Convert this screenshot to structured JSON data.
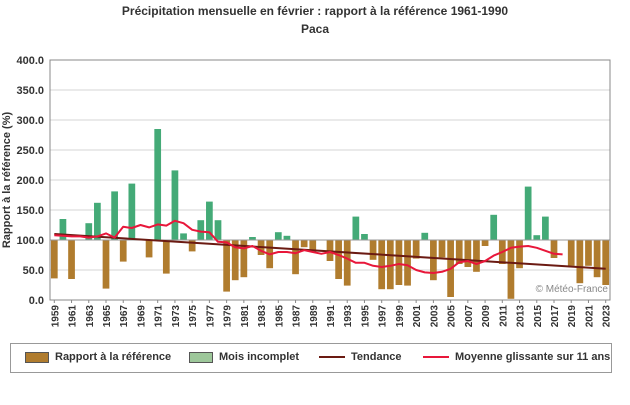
{
  "chart_data": {
    "type": "bar",
    "title": "Précipitation mensuelle en février : rapport à la référence 1961-1990",
    "subtitle": "Paca",
    "ylabel": "Rapport à la référence (%)",
    "xlabel": "",
    "ylim": [
      0,
      400
    ],
    "yticks": [
      "0.0",
      "50.0",
      "100.0",
      "150.0",
      "200.0",
      "250.0",
      "300.0",
      "350.0",
      "400.0"
    ],
    "baseline": 100,
    "grid": true,
    "x_tick_labels": [
      "1959",
      "1961",
      "1963",
      "1965",
      "1967",
      "1969",
      "1971",
      "1973",
      "1975",
      "1977",
      "1979",
      "1981",
      "1983",
      "1985",
      "1987",
      "1989",
      "1991",
      "1993",
      "1995",
      "1997",
      "1999",
      "2001",
      "2003",
      "2005",
      "2007",
      "2009",
      "2011",
      "2013",
      "2015",
      "2017",
      "2019",
      "2021",
      "2023"
    ],
    "years": [
      1959,
      1960,
      1961,
      1962,
      1963,
      1964,
      1965,
      1966,
      1967,
      1968,
      1969,
      1970,
      1971,
      1972,
      1973,
      1974,
      1975,
      1976,
      1977,
      1978,
      1979,
      1980,
      1981,
      1982,
      1983,
      1984,
      1985,
      1986,
      1987,
      1988,
      1989,
      1990,
      1991,
      1992,
      1993,
      1994,
      1995,
      1996,
      1997,
      1998,
      1999,
      2000,
      2001,
      2002,
      2003,
      2004,
      2005,
      2006,
      2007,
      2008,
      2009,
      2010,
      2011,
      2012,
      2013,
      2014,
      2015,
      2016,
      2017,
      2018,
      2019,
      2020,
      2021,
      2022,
      2023
    ],
    "series": [
      {
        "name": "Rapport à la référence",
        "color_above": "#44aa77",
        "color_below": "#b07c2e",
        "values": [
          36,
          135,
          35,
          100,
          128,
          162,
          19,
          181,
          64,
          194,
          100,
          71,
          285,
          44,
          216,
          111,
          81,
          133,
          164,
          133,
          14,
          33,
          38,
          105,
          75,
          53,
          113,
          107,
          43,
          88,
          82,
          100,
          65,
          35,
          24,
          139,
          110,
          67,
          18,
          18,
          25,
          24,
          69,
          112,
          33,
          71,
          5,
          60,
          55,
          47,
          90,
          142,
          60,
          2,
          53,
          189,
          108,
          139,
          70,
          100,
          57,
          28,
          57,
          38,
          25
        ]
      },
      {
        "name": "Mois incomplet",
        "color": "#9dc79a",
        "values": []
      },
      {
        "name": "Tendance",
        "type": "line",
        "color": "#6b1a12",
        "start": [
          1959,
          110
        ],
        "end": [
          2023,
          52
        ]
      },
      {
        "name": "Moyenne glissante sur 11 ans",
        "type": "line",
        "color": "#e8173a",
        "x": [
          1959,
          1960,
          1961,
          1962,
          1963,
          1964,
          1965,
          1966,
          1967,
          1968,
          1969,
          1970,
          1971,
          1972,
          1973,
          1974,
          1975,
          1976,
          1977,
          1978,
          1979,
          1980,
          1981,
          1982,
          1983,
          1984,
          1985,
          1986,
          1987,
          1988,
          1989,
          1990,
          1991,
          1992,
          1993,
          1994,
          1995,
          1996,
          1997,
          1998,
          1999,
          2000,
          2001,
          2002,
          2003,
          2004,
          2005,
          2006,
          2007,
          2008,
          2009,
          2010,
          2011,
          2012,
          2013,
          2014,
          2015,
          2016,
          2017,
          2018
        ],
        "values": [
          108,
          107,
          106,
          106,
          104,
          106,
          111,
          104,
          122,
          120,
          125,
          121,
          126,
          124,
          132,
          128,
          117,
          114,
          113,
          97,
          96,
          88,
          86,
          90,
          82,
          76,
          80,
          80,
          78,
          83,
          80,
          77,
          80,
          75,
          69,
          62,
          62,
          57,
          55,
          57,
          60,
          58,
          50,
          46,
          45,
          47,
          52,
          63,
          65,
          60,
          65,
          74,
          80,
          87,
          89,
          90,
          87,
          82,
          77,
          76
        ]
      }
    ],
    "watermark": "© Météo-France"
  },
  "legend": {
    "items": [
      {
        "label": "Rapport à la référence",
        "color": "#b07c2e"
      },
      {
        "label": "Mois incomplet",
        "color": "#9dc79a"
      },
      {
        "label": "Tendance",
        "color": "#6b1a12"
      },
      {
        "label": "Moyenne glissante sur 11 ans",
        "color": "#e8173a"
      }
    ]
  }
}
